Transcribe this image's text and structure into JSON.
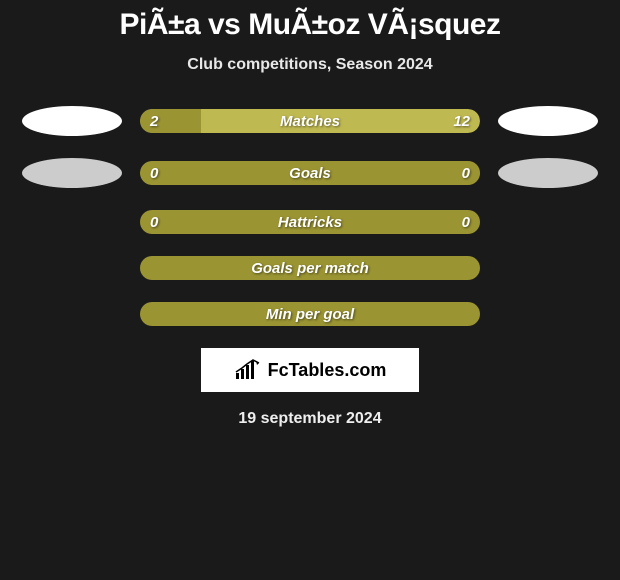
{
  "title": "PiÃ±a vs MuÃ±oz VÃ¡squez",
  "subtitle": "Club competitions, Season 2024",
  "colors": {
    "background": "#1a1a1a",
    "bar_olive": "#9a9433",
    "bar_olive_dark": "#7a7528",
    "bar_secondary": "#bfb952",
    "oval_white": "#ffffff",
    "oval_grey": "#cccccc",
    "text": "#ffffff"
  },
  "rows_with_ovals": [
    {
      "label": "Matches",
      "left_value": "2",
      "right_value": "12",
      "left_oval_color": "#ffffff",
      "right_oval_color": "#ffffff",
      "left_pct": 18,
      "bg_color": "#bfb952",
      "fill_color": "#9a9433"
    },
    {
      "label": "Goals",
      "left_value": "0",
      "right_value": "0",
      "left_oval_color": "#cccccc",
      "right_oval_color": "#cccccc",
      "left_pct": 100,
      "bg_color": "#9a9433",
      "fill_color": "#9a9433"
    }
  ],
  "stat_bars": [
    {
      "label": "Hattricks",
      "left_value": "0",
      "right_value": "0",
      "bg_color": "#9a9433"
    },
    {
      "label": "Goals per match",
      "left_value": "",
      "right_value": "",
      "bg_color": "#9a9433"
    },
    {
      "label": "Min per goal",
      "left_value": "",
      "right_value": "",
      "bg_color": "#9a9433"
    }
  ],
  "logo_text": "FcTables.com",
  "date": "19 september 2024"
}
